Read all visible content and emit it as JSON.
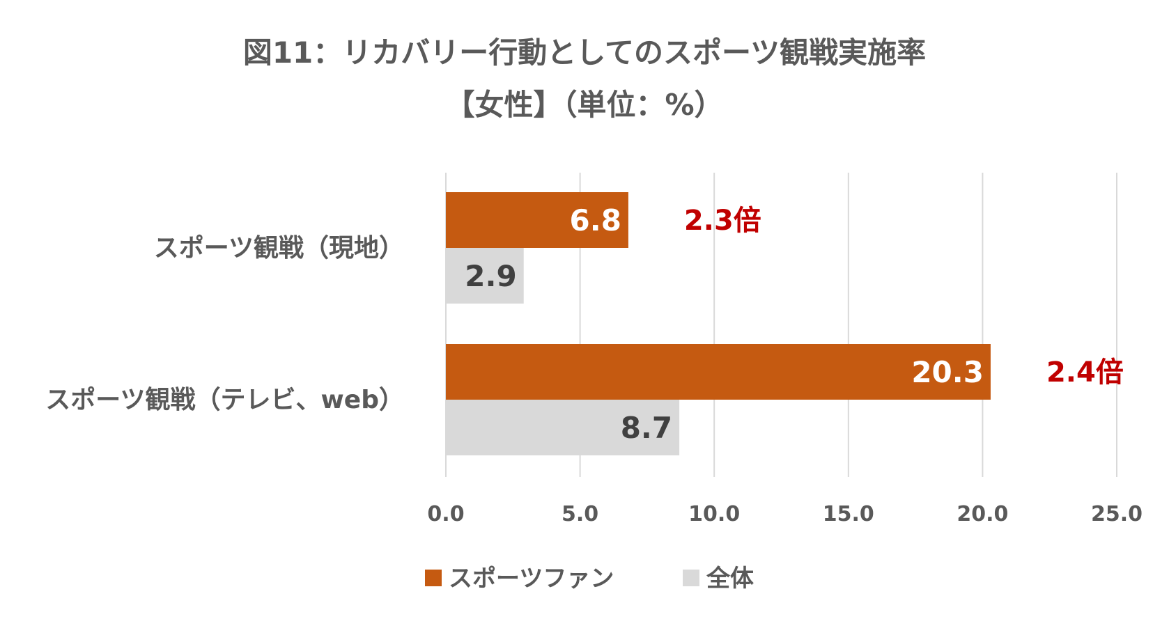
{
  "chart_data": {
    "type": "bar",
    "orientation": "horizontal",
    "title": "図11：リカバリー行動としてのスポーツ観戦実施率",
    "subtitle": "【女性】（単位：%）",
    "categories": [
      "スポーツ観戦（現地）",
      "スポーツ観戦（テレビ、web）"
    ],
    "series": [
      {
        "name": "スポーツファン",
        "values": [
          6.8,
          20.3
        ],
        "color": "#c55a11",
        "label_color": "#ffffff"
      },
      {
        "name": "全体",
        "values": [
          2.9,
          8.7
        ],
        "color": "#d9d9d9",
        "label_color": "#404040"
      }
    ],
    "value_labels": [
      [
        "6.8",
        "20.3"
      ],
      [
        "2.9",
        "8.7"
      ]
    ],
    "ratio_labels": [
      "2.3倍",
      "2.4倍"
    ],
    "ratio_color": "#c00000",
    "xlim": [
      0,
      25
    ],
    "xticks": [
      "0.0",
      "5.0",
      "10.0",
      "15.0",
      "20.0",
      "25.0"
    ],
    "xtick_values": [
      0,
      5,
      10,
      15,
      20,
      25
    ],
    "grid": true,
    "legend_position": "bottom"
  }
}
